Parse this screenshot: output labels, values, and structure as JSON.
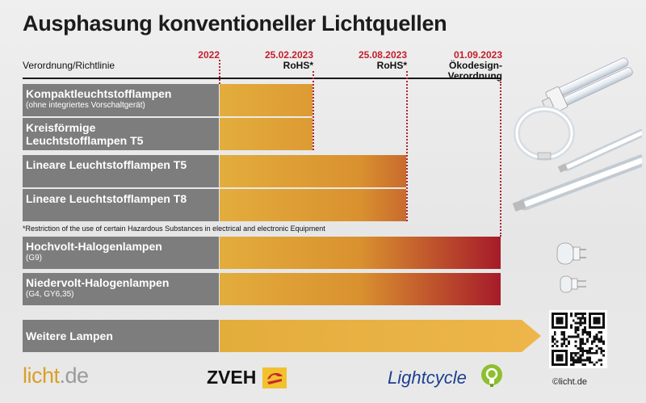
{
  "title": "Ausphasung konventioneller Lichtquellen",
  "column_header": "Verordnung/Richtlinie",
  "timeline": [
    {
      "date": "2022",
      "regulation": ""
    },
    {
      "date": "25.02.2023",
      "regulation": "RoHS*"
    },
    {
      "date": "25.08.2023",
      "regulation": "RoHS*"
    },
    {
      "date": "01.09.2023",
      "regulation": "Ökodesign-\nVerordnung"
    }
  ],
  "footnote": "*Restriction of the use of certain Hazardous Substances in electrical and electronic Equipment",
  "more_lamps": "Weitere Lampen",
  "colors": {
    "bar_start": "#e3ad3c",
    "bar_end": "#a61b2a",
    "label_bg": "#7d7d7d",
    "date": "#c21f2c"
  },
  "chart_data": {
    "type": "gantt",
    "start": "2022",
    "milestones": [
      "2022",
      "25.02.2023",
      "25.08.2023",
      "01.09.2023"
    ],
    "series": [
      {
        "name": "Kompaktleuchtstofflampen",
        "note": "(ohne integriertes Vorschaltgerät)",
        "end": "25.02.2023",
        "regulation": "RoHS*"
      },
      {
        "name": "Kreisförmige\nLeuchtstofflampen T5",
        "note": "",
        "end": "25.02.2023",
        "regulation": "RoHS*"
      },
      {
        "name": "Lineare Leuchtstofflampen T5",
        "note": "",
        "end": "25.08.2023",
        "regulation": "RoHS*"
      },
      {
        "name": "Lineare Leuchtstofflampen T8",
        "note": "",
        "end": "25.08.2023",
        "regulation": "RoHS*"
      },
      {
        "name": "Hochvolt-Halogenlampen",
        "note": "(G9)",
        "end": "01.09.2023",
        "regulation": "Ökodesign-Verordnung"
      },
      {
        "name": "Niedervolt-Halogenlampen",
        "note": "(G4, GY6,35)",
        "end": "01.09.2023",
        "regulation": "Ökodesign-Verordnung"
      }
    ]
  },
  "logos": {
    "licht_a": "licht",
    "licht_b": ".de",
    "zveh": "ZVEH",
    "lightcycle": "Lightcycle",
    "copyright": "©licht.de"
  }
}
